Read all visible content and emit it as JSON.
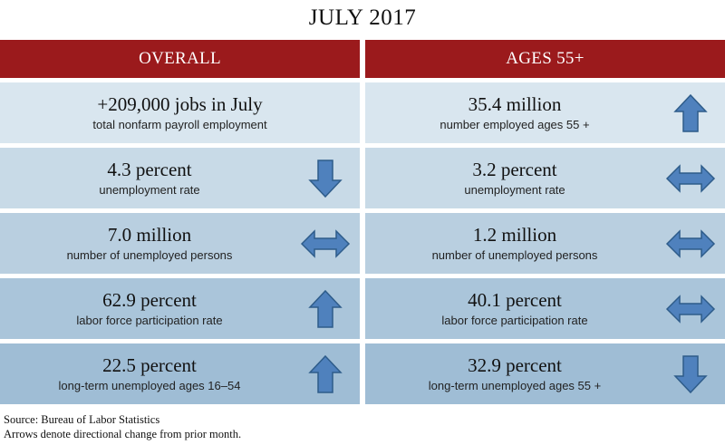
{
  "title": "JULY 2017",
  "columns": {
    "overall": {
      "header": "OVERALL",
      "rows": [
        {
          "value": "+209,000 jobs in July",
          "label": "total nonfarm payroll employment",
          "arrow": "none"
        },
        {
          "value": "4.3 percent",
          "label": "unemployment rate",
          "arrow": "down"
        },
        {
          "value": "7.0 million",
          "label": "number of unemployed persons",
          "arrow": "left-right"
        },
        {
          "value": "62.9 percent",
          "label": "labor force participation rate",
          "arrow": "up"
        },
        {
          "value": "22.5 percent",
          "label": "long-term unemployed ages 16–54",
          "arrow": "up"
        }
      ]
    },
    "ages55": {
      "header": "AGES 55+",
      "rows": [
        {
          "value": "35.4 million",
          "label": "number employed ages 55 +",
          "arrow": "up"
        },
        {
          "value": "3.2 percent",
          "label": "unemployment rate",
          "arrow": "left-right"
        },
        {
          "value": "1.2 million",
          "label": "number of unemployed persons",
          "arrow": "left-right"
        },
        {
          "value": "40.1 percent",
          "label": "labor force participation rate",
          "arrow": "left-right"
        },
        {
          "value": "32.9 percent",
          "label": "long-term unemployed ages 55 +",
          "arrow": "down"
        }
      ]
    }
  },
  "footer": {
    "source": "Source: Bureau of Labor Statistics",
    "note": "Arrows denote directional change from prior month."
  },
  "colors": {
    "header_bg": "#9b1a1c",
    "arrow_fill": "#4f81bd",
    "arrow_stroke": "#2e5c8a"
  }
}
